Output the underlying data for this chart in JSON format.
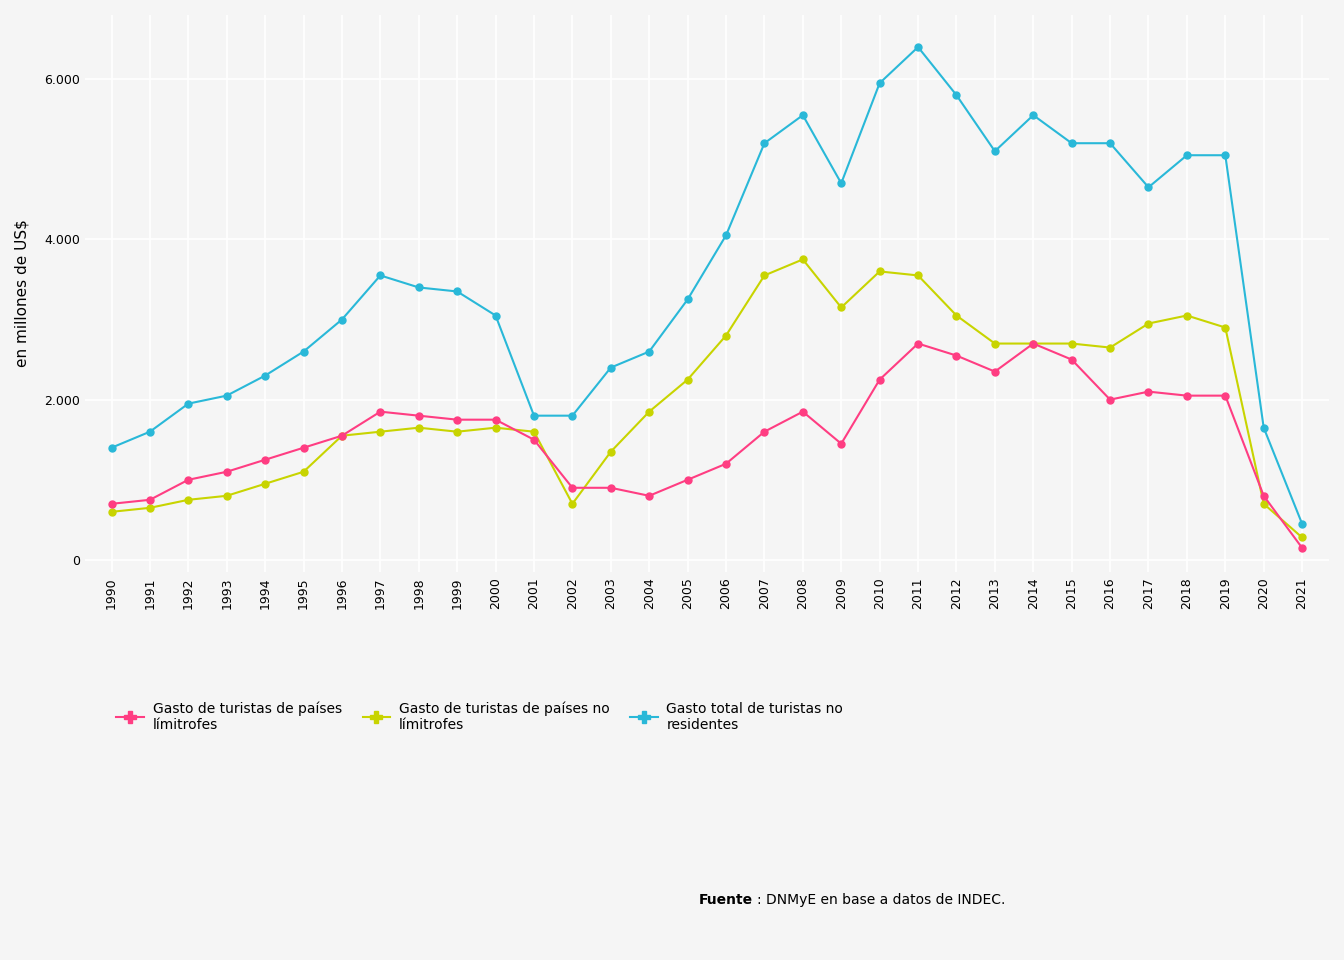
{
  "years": [
    1990,
    1991,
    1992,
    1993,
    1994,
    1995,
    1996,
    1997,
    1998,
    1999,
    2000,
    2001,
    2002,
    2003,
    2004,
    2005,
    2006,
    2007,
    2008,
    2009,
    2010,
    2011,
    2012,
    2013,
    2014,
    2015,
    2016,
    2017,
    2018,
    2019,
    2020,
    2021
  ],
  "limitrofes": [
    700,
    750,
    1000,
    1100,
    1250,
    1400,
    1550,
    1850,
    1800,
    1750,
    1750,
    1500,
    900,
    900,
    800,
    1000,
    1200,
    1600,
    1850,
    1450,
    2250,
    2700,
    2550,
    2350,
    2700,
    2500,
    2000,
    2100,
    2050,
    2050,
    800,
    150
  ],
  "no_limitrofes": [
    600,
    650,
    750,
    800,
    950,
    1100,
    1550,
    1600,
    1650,
    1600,
    1650,
    1600,
    700,
    1350,
    1850,
    2250,
    2800,
    3550,
    3750,
    3150,
    3600,
    3550,
    3050,
    2700,
    2700,
    2700,
    2650,
    2950,
    3050,
    2900,
    700,
    280
  ],
  "total": [
    1400,
    1600,
    1950,
    2050,
    2300,
    2600,
    3000,
    3550,
    3400,
    3350,
    3050,
    1800,
    1800,
    2400,
    2600,
    3250,
    4050,
    5200,
    5550,
    4700,
    5950,
    6400,
    5800,
    5100,
    5550,
    5200,
    5200,
    4650,
    5050,
    5050,
    1650,
    450
  ],
  "color_limitrofes": "#FF3D82",
  "color_no_limitrofes": "#C8D400",
  "color_total": "#29B8D8",
  "ylabel": "en millones de US$",
  "background_color": "#f5f5f5",
  "grid_color": "#ffffff",
  "legend_label_limitrofes": "Gasto de turistas de países\nlímitrofes",
  "legend_label_no_limitrofes": "Gasto de turistas de países no\nlímitrofes",
  "legend_label_total": "Gasto total de turistas no\nresidentes",
  "source_bold": "Fuente",
  "source_normal": ": DNMyE en base a datos de INDEC.",
  "yticks": [
    0,
    2000,
    4000,
    6000
  ],
  "ylim": [
    -150,
    6800
  ],
  "xlim": [
    1989.3,
    2021.7
  ],
  "marker_size": 5,
  "linewidth": 1.5,
  "tick_fontsize": 9,
  "ylabel_fontsize": 11,
  "legend_fontsize": 10
}
